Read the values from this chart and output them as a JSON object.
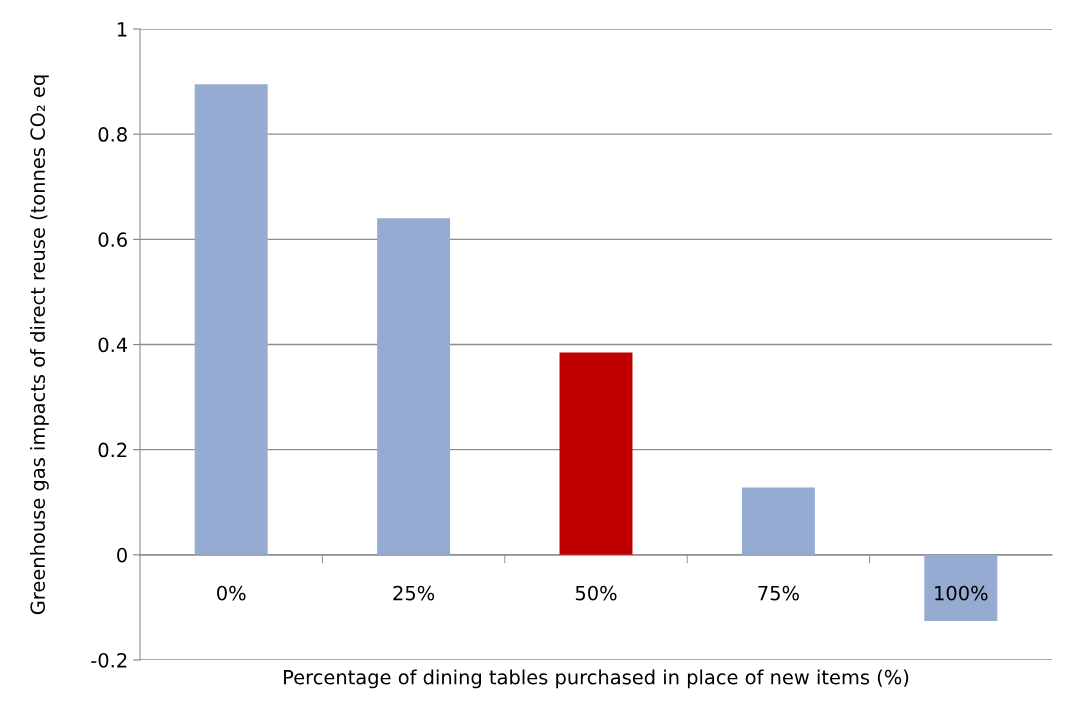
{
  "chart_data": {
    "type": "bar",
    "categories": [
      "0%",
      "25%",
      "50%",
      "75%",
      "100%"
    ],
    "values": [
      0.895,
      0.64,
      0.385,
      0.128,
      -0.126
    ],
    "colors": [
      "#95abd1",
      "#95abd1",
      "#c00000",
      "#95abd1",
      "#95abd1"
    ],
    "xlabel": "Percentage of dining tables purchased in place of new items (%)",
    "ylabel": "Greenhouse gas impacts of direct reuse (tonnes CO₂ eq",
    "ylim": [
      -0.2,
      1
    ],
    "yticks": [
      -0.2,
      0,
      0.2,
      0.4,
      0.6,
      0.8,
      1
    ],
    "grid": "y"
  }
}
